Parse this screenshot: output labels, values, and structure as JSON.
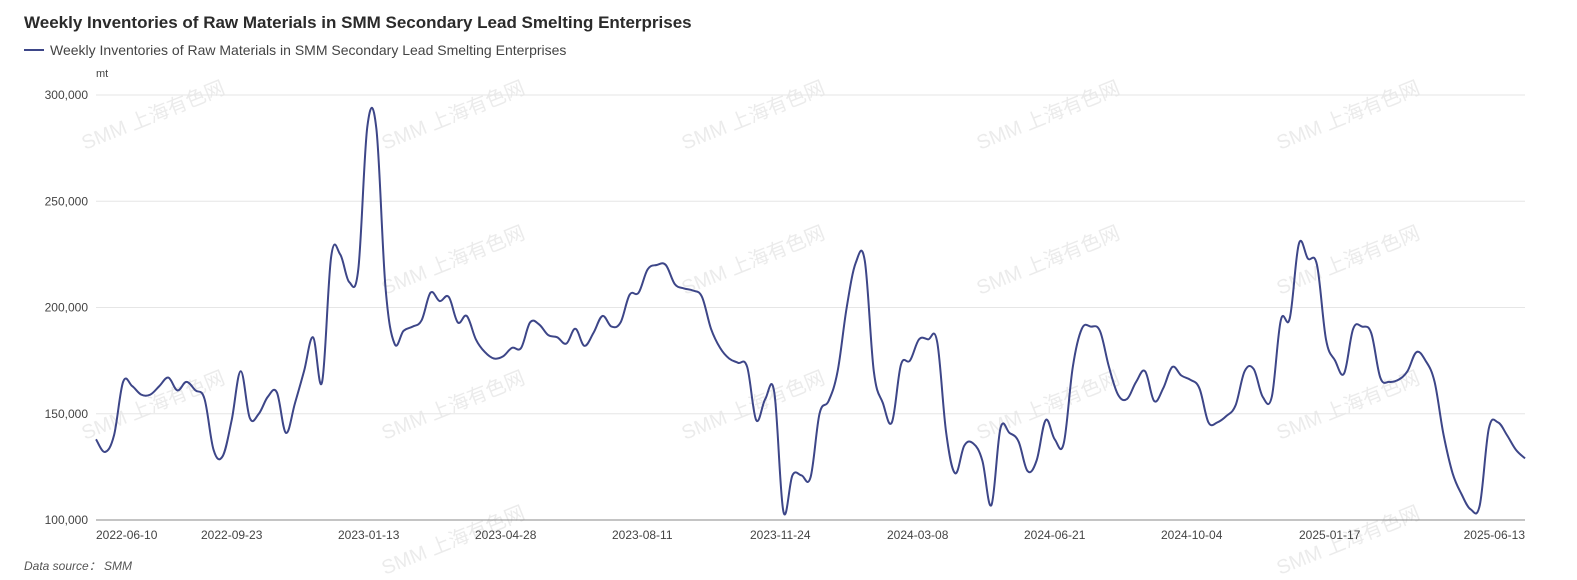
{
  "header": {
    "title": "Weekly Inventories of Raw Materials in SMM Secondary Lead Smelting Enterprises",
    "unit": "mt",
    "source": "Data source： SMM",
    "watermark": "SMM 上海有色网"
  },
  "chart_data": {
    "type": "line",
    "title": "Weekly Inventories of Raw Materials in SMM Secondary Lead Smelting Enterprises",
    "ylabel": "mt",
    "ylim": [
      100000,
      300000
    ],
    "yticks": [
      100000,
      150000,
      200000,
      250000,
      300000
    ],
    "ytick_labels": [
      "100,000",
      "150,000",
      "200,000",
      "250,000",
      "300,000"
    ],
    "xtick_labels": [
      "2022-06-10",
      "2022-09-23",
      "2023-01-13",
      "2023-04-28",
      "2023-08-11",
      "2023-11-24",
      "2024-03-08",
      "2024-06-21",
      "2024-10-04",
      "2025-01-17",
      "2025-06-13"
    ],
    "grid": true,
    "legend_position": "top-left",
    "series": [
      {
        "name": "Weekly Inventories of Raw Materials in SMM Secondary Lead Smelting Enterprises",
        "color": "#3d4688",
        "values": [
          138000,
          132000,
          140000,
          165000,
          163000,
          159000,
          159000,
          163000,
          167000,
          161000,
          165000,
          161000,
          157000,
          133000,
          130000,
          147000,
          170000,
          148000,
          150000,
          158000,
          160000,
          141000,
          155000,
          170000,
          186000,
          165000,
          224000,
          225000,
          212000,
          218000,
          285000,
          284000,
          210000,
          183000,
          189000,
          191000,
          194000,
          207000,
          203000,
          205000,
          193000,
          196000,
          185000,
          179000,
          176000,
          177000,
          181000,
          181000,
          193000,
          192000,
          187000,
          186000,
          183000,
          190000,
          182000,
          188000,
          196000,
          191000,
          193000,
          206000,
          207000,
          218000,
          220000,
          220000,
          211000,
          209000,
          208000,
          205000,
          190000,
          181000,
          176000,
          174000,
          172000,
          147000,
          157000,
          160000,
          104000,
          121000,
          121000,
          120000,
          150000,
          156000,
          170000,
          200000,
          221000,
          222000,
          170000,
          155000,
          146000,
          173000,
          175000,
          185000,
          185000,
          184000,
          141000,
          122000,
          135000,
          136000,
          128000,
          107000,
          143000,
          141000,
          137000,
          123000,
          128000,
          147000,
          138000,
          136000,
          172000,
          190000,
          191000,
          189000,
          172000,
          159000,
          157000,
          165000,
          170000,
          156000,
          162000,
          172000,
          168000,
          166000,
          162000,
          146000,
          146000,
          149000,
          154000,
          170000,
          171000,
          158000,
          158000,
          194000,
          195000,
          230000,
          223000,
          220000,
          185000,
          175000,
          169000,
          190000,
          191000,
          188000,
          167000,
          165000,
          166000,
          170000,
          179000,
          175000,
          165000,
          140000,
          122000,
          112000,
          105000,
          107000,
          143000,
          146000,
          140000,
          133000,
          129000
        ]
      }
    ]
  }
}
